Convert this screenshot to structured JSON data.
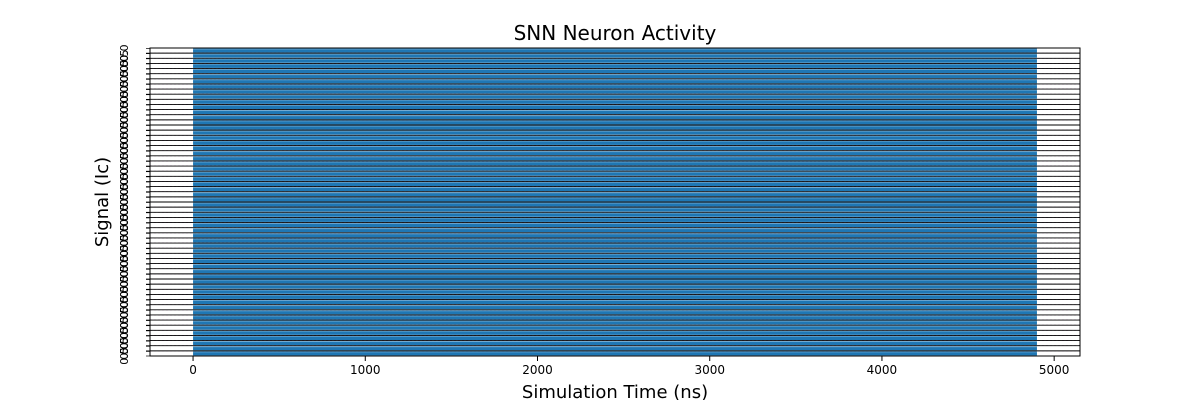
{
  "chart_data": {
    "type": "area",
    "title": "SNN Neuron Activity",
    "xlabel": "Simulation Time (ns)",
    "ylabel": "Signal (Ic)",
    "xlim": [
      -250,
      5150
    ],
    "x_ticks": [
      0,
      1000,
      2000,
      3000,
      4000,
      5000
    ],
    "x_tick_labels": [
      "0",
      "1000",
      "2000",
      "3000",
      "4000",
      "5000"
    ],
    "num_traces": 60,
    "trace_amplitude_range": [
      0.0,
      0.5
    ],
    "y_tick_labels_per_trace": [
      "0.0",
      "0.5"
    ],
    "signal_start": 0,
    "signal_end": 4900,
    "grid": "horizontal dashed",
    "colors": {
      "fill": "#1f77b4",
      "baseline": "#000000",
      "grid": "#b85cb8"
    }
  }
}
